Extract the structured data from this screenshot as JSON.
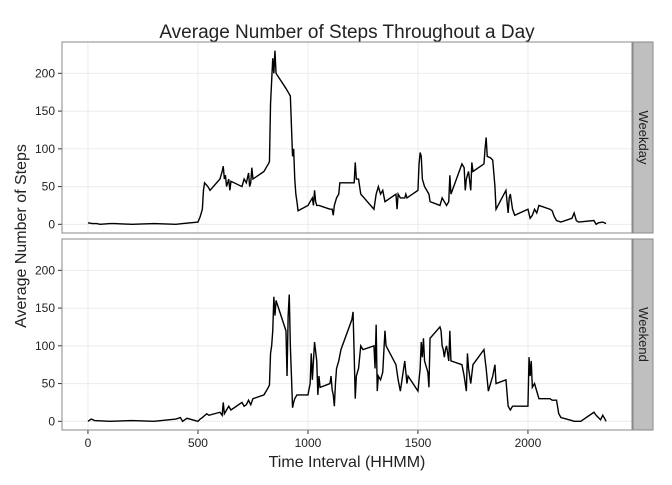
{
  "chart_data": [
    {
      "type": "line",
      "title": "Average Number of Steps Throughout a Day",
      "xlabel": "Time Interval (HHMM)",
      "ylabel": "Average Number of Steps",
      "strip": "Weekday",
      "color": "#000000",
      "grid": true,
      "xlim": [
        -118,
        2473
      ],
      "ylim": [
        -11.5,
        241.5
      ],
      "xticks": [
        0,
        500,
        1000,
        1500,
        2000
      ],
      "yticks": [
        0,
        50,
        100,
        150,
        200
      ],
      "x": [
        0,
        20,
        40,
        55,
        100,
        120,
        200,
        300,
        400,
        430,
        500,
        510,
        520,
        525,
        530,
        545,
        555,
        600,
        610,
        615,
        620,
        625,
        630,
        640,
        645,
        650,
        700,
        710,
        720,
        730,
        735,
        740,
        745,
        750,
        800,
        810,
        820,
        825,
        830,
        835,
        840,
        845,
        850,
        855,
        900,
        910,
        920,
        925,
        930,
        935,
        940,
        945,
        950,
        955,
        1000,
        1010,
        1020,
        1025,
        1030,
        1035,
        1040,
        1050,
        1100,
        1110,
        1115,
        1120,
        1130,
        1140,
        1145,
        1200,
        1210,
        1215,
        1220,
        1230,
        1240,
        1300,
        1310,
        1320,
        1330,
        1340,
        1350,
        1400,
        1405,
        1410,
        1420,
        1440,
        1445,
        1450,
        1500,
        1505,
        1510,
        1515,
        1520,
        1530,
        1550,
        1555,
        1600,
        1610,
        1620,
        1630,
        1640,
        1645,
        1650,
        1700,
        1710,
        1715,
        1720,
        1730,
        1740,
        1745,
        1750,
        1800,
        1805,
        1810,
        1815,
        1830,
        1840,
        1850,
        1855,
        1900,
        1905,
        1910,
        1915,
        1920,
        1930,
        1940,
        2000,
        2010,
        2020,
        2030,
        2040,
        2050,
        2100,
        2110,
        2120,
        2130,
        2140,
        2150,
        2200,
        2210,
        2220,
        2230,
        2300,
        2310,
        2320,
        2340,
        2355
      ],
      "values": [
        2,
        1,
        1,
        0,
        1,
        1,
        0,
        1,
        0,
        1,
        3,
        10,
        20,
        45,
        55,
        50,
        45,
        60,
        70,
        77,
        60,
        65,
        50,
        60,
        45,
        57,
        50,
        60,
        55,
        68,
        50,
        55,
        75,
        60,
        70,
        75,
        80,
        83,
        160,
        190,
        220,
        200,
        230,
        200,
        180,
        175,
        170,
        130,
        90,
        100,
        60,
        40,
        30,
        18,
        25,
        30,
        35,
        25,
        45,
        30,
        25,
        25,
        20,
        20,
        12,
        25,
        35,
        40,
        55,
        55,
        55,
        82,
        60,
        60,
        40,
        20,
        40,
        50,
        40,
        45,
        30,
        40,
        20,
        40,
        35,
        35,
        40,
        35,
        45,
        80,
        95,
        90,
        60,
        50,
        40,
        30,
        25,
        35,
        30,
        25,
        30,
        65,
        40,
        80,
        75,
        45,
        60,
        70,
        45,
        82,
        70,
        80,
        100,
        115,
        90,
        88,
        85,
        50,
        20,
        45,
        30,
        15,
        35,
        40,
        20,
        12,
        20,
        8,
        12,
        20,
        15,
        25,
        20,
        18,
        10,
        5,
        4,
        3,
        8,
        15,
        5,
        3,
        5,
        0,
        2,
        3,
        1
      ]
    },
    {
      "type": "line",
      "strip": "Weekend",
      "color": "#000000",
      "grid": true,
      "xlim": [
        -118,
        2473
      ],
      "ylim": [
        -11.5,
        241.5
      ],
      "xticks": [
        0,
        500,
        1000,
        1500,
        2000
      ],
      "yticks": [
        0,
        50,
        100,
        150,
        200
      ],
      "x": [
        0,
        5,
        15,
        30,
        100,
        200,
        300,
        400,
        420,
        430,
        440,
        450,
        500,
        510,
        520,
        540,
        550,
        600,
        610,
        615,
        620,
        630,
        640,
        650,
        700,
        710,
        720,
        730,
        740,
        750,
        800,
        810,
        820,
        825,
        830,
        835,
        840,
        845,
        850,
        855,
        900,
        905,
        910,
        915,
        920,
        925,
        930,
        935,
        940,
        950,
        1000,
        1010,
        1015,
        1020,
        1030,
        1040,
        1045,
        1050,
        1055,
        1100,
        1105,
        1110,
        1115,
        1120,
        1125,
        1130,
        1140,
        1150,
        1200,
        1205,
        1210,
        1215,
        1220,
        1230,
        1240,
        1250,
        1300,
        1305,
        1310,
        1315,
        1320,
        1330,
        1340,
        1350,
        1355,
        1400,
        1410,
        1420,
        1430,
        1440,
        1450,
        1455,
        1500,
        1510,
        1515,
        1520,
        1525,
        1530,
        1540,
        1545,
        1550,
        1555,
        1600,
        1605,
        1610,
        1615,
        1620,
        1625,
        1630,
        1640,
        1645,
        1650,
        1700,
        1710,
        1720,
        1725,
        1730,
        1740,
        1750,
        1800,
        1810,
        1820,
        1840,
        1850,
        1855,
        1900,
        1910,
        1920,
        1930,
        2000,
        2005,
        2010,
        2015,
        2020,
        2030,
        2040,
        2050,
        2100,
        2110,
        2130,
        2140,
        2150,
        2200,
        2210,
        2220,
        2240,
        2300,
        2310,
        2320,
        2330,
        2340,
        2350,
        2355
      ],
      "values": [
        0,
        1,
        3,
        1,
        0,
        1,
        0,
        3,
        5,
        0,
        2,
        4,
        0,
        3,
        5,
        10,
        8,
        12,
        8,
        25,
        10,
        15,
        20,
        15,
        25,
        20,
        22,
        28,
        22,
        30,
        35,
        40,
        45,
        48,
        90,
        100,
        120,
        165,
        140,
        160,
        120,
        60,
        140,
        168,
        100,
        60,
        18,
        25,
        30,
        35,
        35,
        50,
        90,
        55,
        105,
        80,
        35,
        60,
        45,
        50,
        60,
        42,
        35,
        20,
        50,
        70,
        80,
        95,
        135,
        145,
        90,
        30,
        60,
        70,
        100,
        95,
        100,
        70,
        128,
        40,
        60,
        55,
        65,
        120,
        100,
        75,
        55,
        40,
        60,
        80,
        50,
        60,
        40,
        70,
        105,
        85,
        110,
        80,
        70,
        65,
        45,
        110,
        125,
        120,
        100,
        95,
        85,
        95,
        100,
        80,
        120,
        80,
        75,
        60,
        40,
        90,
        70,
        50,
        75,
        95,
        70,
        40,
        60,
        75,
        50,
        55,
        20,
        15,
        20,
        20,
        85,
        60,
        80,
        45,
        50,
        40,
        30,
        30,
        28,
        28,
        10,
        5,
        1,
        0,
        0,
        0,
        12,
        8,
        5,
        2,
        8,
        3,
        0
      ]
    }
  ]
}
